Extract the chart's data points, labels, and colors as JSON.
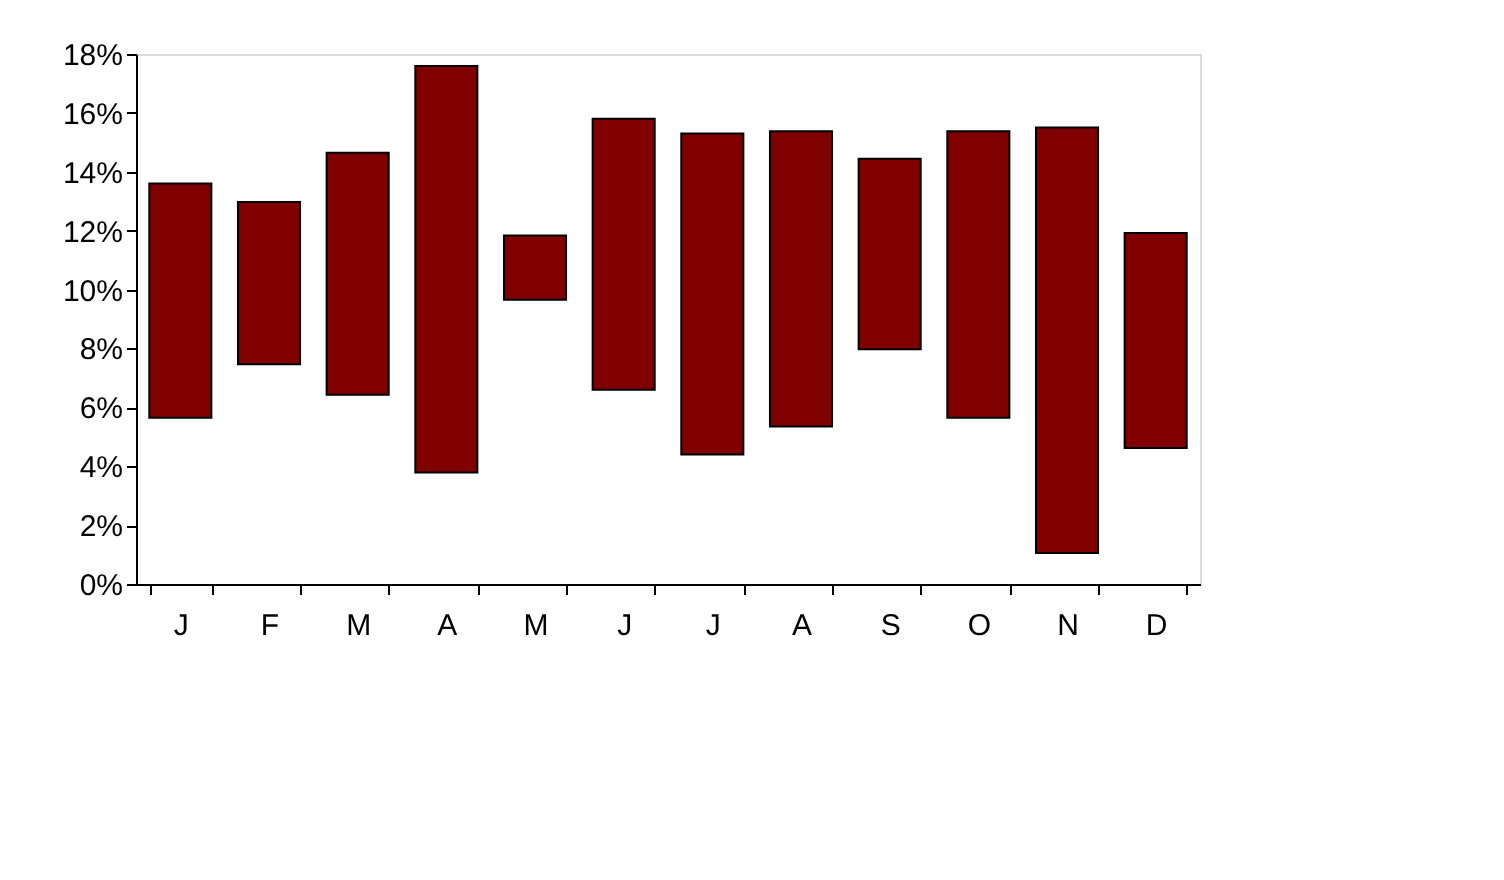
{
  "chart_data": {
    "type": "bar",
    "categories": [
      "J",
      "F",
      "M",
      "A",
      "M",
      "J",
      "J",
      "A",
      "S",
      "O",
      "N",
      "D"
    ],
    "base": [
      5.65,
      7.46,
      6.43,
      3.79,
      9.65,
      6.6,
      4.4,
      5.35,
      7.97,
      5.65,
      1.05,
      4.62
    ],
    "values": [
      7.95,
      5.51,
      8.22,
      13.8,
      2.19,
      9.2,
      10.9,
      10.03,
      6.47,
      9.73,
      14.45,
      7.3
    ],
    "color": "#800000",
    "ylim": [
      0,
      18
    ],
    "yticks": [
      {
        "value": 0,
        "label": "0%"
      },
      {
        "value": 2,
        "label": "2%"
      },
      {
        "value": 4,
        "label": "4%"
      },
      {
        "value": 6,
        "label": "6%"
      },
      {
        "value": 8,
        "label": "8%"
      },
      {
        "value": 10,
        "label": "10%"
      },
      {
        "value": 12,
        "label": "12%"
      },
      {
        "value": 14,
        "label": "14%"
      },
      {
        "value": 16,
        "label": "16%"
      },
      {
        "value": 18,
        "label": "18%"
      }
    ],
    "grid": false
  }
}
